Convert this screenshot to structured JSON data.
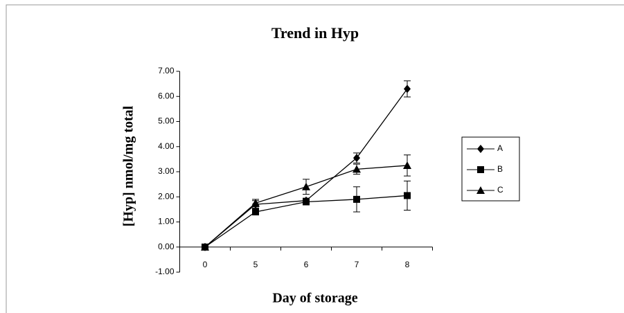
{
  "chart_data": {
    "type": "line",
    "title": "Trend in Hyp",
    "x_label": "Day of storage",
    "y_label": "[Hyp] nmol/mg  total",
    "categories": [
      "0",
      "5",
      "6",
      "7",
      "8"
    ],
    "series": [
      {
        "name": "A",
        "color": "#000000",
        "marker": "diamond",
        "values": [
          0,
          1.7,
          1.85,
          3.55,
          6.3
        ],
        "errors": [
          0,
          0.15,
          0.1,
          0.2,
          0.32
        ]
      },
      {
        "name": "B",
        "color": "#000000",
        "marker": "square",
        "values": [
          0,
          1.4,
          1.8,
          1.9,
          2.05
        ],
        "errors": [
          0,
          0.1,
          0.1,
          0.5,
          0.58
        ]
      },
      {
        "name": "C",
        "color": "#000000",
        "marker": "triangle",
        "values": [
          0,
          1.75,
          2.4,
          3.1,
          3.25
        ],
        "errors": [
          0,
          0.15,
          0.3,
          0.2,
          0.42
        ]
      }
    ],
    "ylim": [
      -1,
      7
    ],
    "yticks": [
      {
        "value": -1,
        "label": "-1.00"
      },
      {
        "value": 0,
        "label": "0.00"
      },
      {
        "value": 1,
        "label": "1.00"
      },
      {
        "value": 2,
        "label": "2.00"
      },
      {
        "value": 3,
        "label": "3.00"
      },
      {
        "value": 4,
        "label": "4.00"
      },
      {
        "value": 5,
        "label": "5.00"
      },
      {
        "value": 6,
        "label": "6.00"
      },
      {
        "value": 7,
        "label": "7.00"
      }
    ],
    "legend": "right"
  }
}
